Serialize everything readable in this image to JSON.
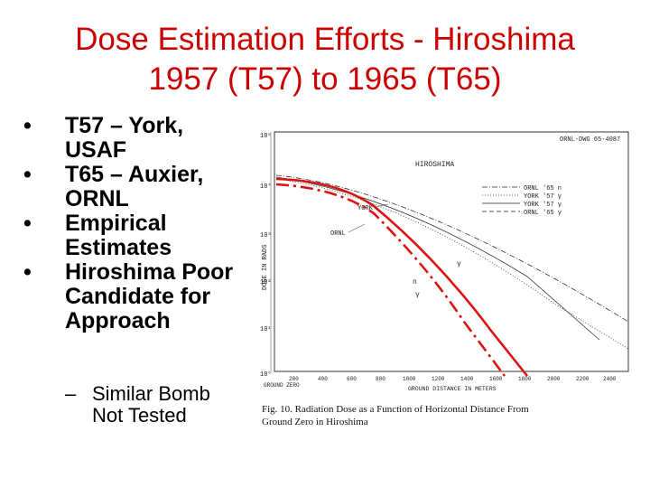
{
  "slide": {
    "title_line1": "Dose Estimation Efforts - Hiroshima",
    "title_line2": "1957 (T57) to 1965 (T65)",
    "title_color": "#cc0000"
  },
  "bullets": [
    {
      "marker": "•",
      "text": "T57 – York, USAF"
    },
    {
      "marker": "•",
      "text": "T65 – Auxier, ORNL"
    },
    {
      "marker": "•",
      "text": "Empirical Estimates"
    },
    {
      "marker": "•",
      "text": "Hiroshima Poor Candidate for Approach"
    }
  ],
  "sub_bullets": [
    {
      "marker": "–",
      "text": "Similar Bomb Not Tested"
    }
  ],
  "figure": {
    "doc_id": "ORNL-DWG 65-4087",
    "panel_label": "HIROSHIMA",
    "legend": [
      {
        "label": "ORNL '65 n",
        "style": "dash-dot"
      },
      {
        "label": "YORK '57 γ",
        "style": "dotted"
      },
      {
        "label": "YORK '57 γ",
        "style": "solid"
      },
      {
        "label": "ORNL '65 γ",
        "style": "dash"
      }
    ],
    "annotations": {
      "york": "YORK",
      "ornl": "ORNL",
      "n": "n",
      "gamma_upper": "γ",
      "gamma_lower": "γ"
    },
    "ylabel": "DOSE IN RADS",
    "yticks": [
      "10⁵",
      "10⁴",
      "10³",
      "10²",
      "10¹",
      "10⁰"
    ],
    "xticks": [
      "200",
      "400",
      "600",
      "800",
      "1000",
      "1200",
      "1400",
      "1600",
      "1800",
      "2000",
      "2200",
      "2400"
    ],
    "x_ground_zero": "GROUND ZERO",
    "xlabel": "GROUND DISTANCE IN METERS",
    "caption_line1": "Fig. 10.   Radiation Dose as a Function of Horizontal Distance From",
    "caption_line2": "Ground Zero in Hiroshima",
    "overlay_color": "#dd1111"
  }
}
